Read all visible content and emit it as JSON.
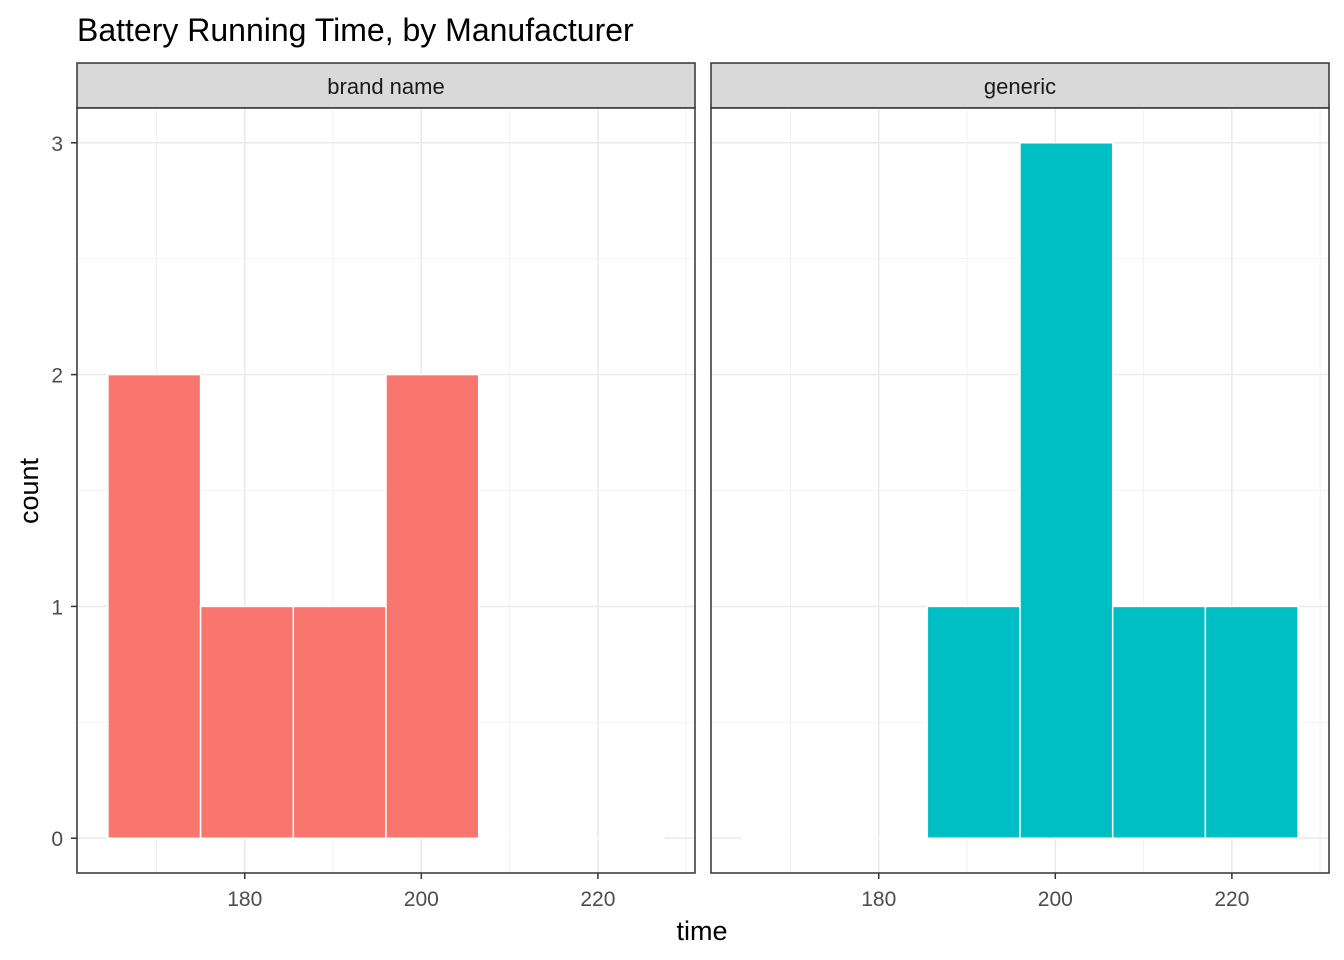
{
  "chart_data": {
    "type": "bar",
    "title": "Battery Running Time, by Manufacturer",
    "xlabel": "time",
    "ylabel": "count",
    "xlim": [
      161,
      231
    ],
    "ylim": [
      -0.15,
      3.15
    ],
    "x_ticks": [
      180,
      200,
      220
    ],
    "y_ticks": [
      0,
      1,
      2,
      3
    ],
    "grid": true,
    "legend": "none",
    "bin_width": 10.5,
    "facets": [
      {
        "name": "brand name",
        "fill": "#F8766D",
        "bins": [
          {
            "x0": 164.5,
            "x1": 175.0,
            "count": 2
          },
          {
            "x0": 175.0,
            "x1": 185.5,
            "count": 1
          },
          {
            "x0": 185.5,
            "x1": 196.0,
            "count": 1
          },
          {
            "x0": 196.0,
            "x1": 206.5,
            "count": 2
          },
          {
            "x0": 206.5,
            "x1": 217.0,
            "count": 0
          },
          {
            "x0": 217.0,
            "x1": 227.5,
            "count": 0
          }
        ]
      },
      {
        "name": "generic",
        "fill": "#00BFC4",
        "bins": [
          {
            "x0": 164.5,
            "x1": 175.0,
            "count": 0
          },
          {
            "x0": 175.0,
            "x1": 185.5,
            "count": 0
          },
          {
            "x0": 185.5,
            "x1": 196.0,
            "count": 1
          },
          {
            "x0": 196.0,
            "x1": 206.5,
            "count": 3
          },
          {
            "x0": 206.5,
            "x1": 217.0,
            "count": 1
          },
          {
            "x0": 217.0,
            "x1": 227.5,
            "count": 1
          }
        ]
      }
    ]
  }
}
